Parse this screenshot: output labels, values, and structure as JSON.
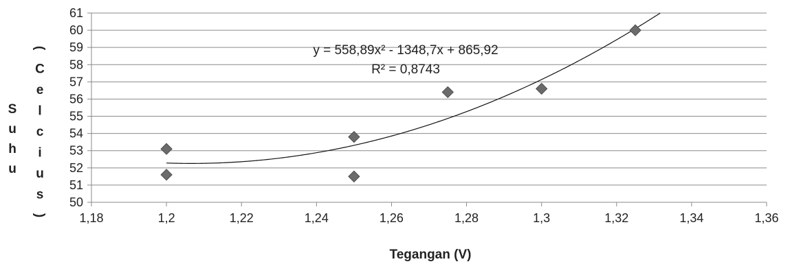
{
  "chart_data": {
    "type": "scatter",
    "title": "",
    "xlabel": "Tegangan (V)",
    "ylabel_left": "Suhu",
    "ylabel_right": "(Celcius)",
    "xlim": [
      1.18,
      1.36
    ],
    "ylim": [
      50,
      61
    ],
    "x_ticks": [
      1.18,
      1.2,
      1.22,
      1.24,
      1.26,
      1.28,
      1.3,
      1.32,
      1.34,
      1.36
    ],
    "x_tick_labels": [
      "1,18",
      "1,2",
      "1,22",
      "1,24",
      "1,26",
      "1,28",
      "1,3",
      "1,32",
      "1,34",
      "1,36"
    ],
    "y_ticks": [
      50,
      51,
      52,
      53,
      54,
      55,
      56,
      57,
      58,
      59,
      60,
      61
    ],
    "y_tick_labels": [
      "50",
      "51",
      "52",
      "53",
      "54",
      "55",
      "56",
      "57",
      "58",
      "59",
      "60",
      "61"
    ],
    "grid": "horizontal",
    "series": [
      {
        "marker": "diamond",
        "color": "#6b6b6b",
        "points": [
          {
            "x": 1.2,
            "y": 53.1
          },
          {
            "x": 1.2,
            "y": 51.6
          },
          {
            "x": 1.25,
            "y": 53.8
          },
          {
            "x": 1.25,
            "y": 51.5
          },
          {
            "x": 1.275,
            "y": 56.4
          },
          {
            "x": 1.3,
            "y": 56.6
          },
          {
            "x": 1.325,
            "y": 60.0
          }
        ]
      }
    ],
    "trendline": {
      "type": "polynomial",
      "coefficients": [
        558.89,
        -1348.7,
        865.92
      ],
      "r_squared": 0.8743,
      "x_start": 1.2,
      "equation_label": "y = 558,89x² - 1348,7x + 865,92",
      "r2_label": "R² = 0,8743"
    }
  }
}
